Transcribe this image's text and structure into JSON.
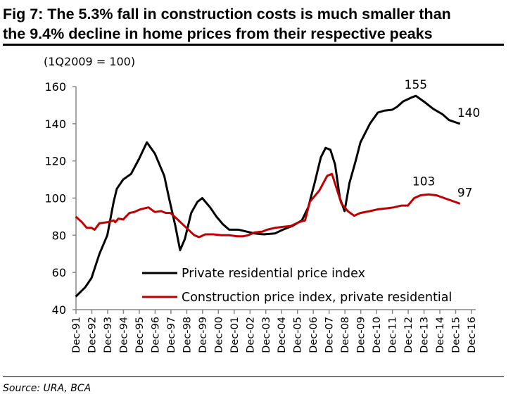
{
  "title_line1": "Fig 7: The 5.3% fall in construction costs is much smaller than",
  "title_line2": "the 9.4% decline in home prices from their respective peaks",
  "source": "Source: URA, BCA",
  "chart_data": {
    "type": "line",
    "title": "Fig 7: The 5.3% fall in construction costs is much smaller than the 9.4% decline in home prices from their respective peaks",
    "ylabel": "(1Q2009 = 100)",
    "xlabel": "",
    "ylim": [
      40,
      160
    ],
    "yticks": [
      40,
      60,
      80,
      100,
      120,
      140,
      160
    ],
    "xlim": [
      1991.92,
      2016.92
    ],
    "xtick_labels": [
      "Dec-91",
      "Dec-92",
      "Dec-93",
      "Dec-94",
      "Dec-95",
      "Dec-96",
      "Dec-97",
      "Dec-98",
      "Dec-99",
      "Dec-00",
      "Dec-01",
      "Dec-02",
      "Dec-03",
      "Dec-04",
      "Dec-05",
      "Dec-06",
      "Dec-07",
      "Dec-08",
      "Dec-09",
      "Dec-10",
      "Dec-11",
      "Dec-12",
      "Dec-13",
      "Dec-14",
      "Dec-15",
      "Dec-16"
    ],
    "grid": false,
    "legend_placement": "bottom-center",
    "series": [
      {
        "name": "Private residential price index",
        "color": "#000000",
        "points": [
          [
            1991.9,
            47
          ],
          [
            1992.5,
            52
          ],
          [
            1992.9,
            57
          ],
          [
            1993.4,
            70
          ],
          [
            1993.9,
            80
          ],
          [
            1994.3,
            98
          ],
          [
            1994.5,
            105
          ],
          [
            1994.9,
            110
          ],
          [
            1995.4,
            113
          ],
          [
            1995.9,
            121
          ],
          [
            1996.4,
            130
          ],
          [
            1996.9,
            124
          ],
          [
            1997.2,
            118
          ],
          [
            1997.5,
            112
          ],
          [
            1997.8,
            100
          ],
          [
            1998.2,
            85
          ],
          [
            1998.5,
            72
          ],
          [
            1998.8,
            78
          ],
          [
            1999.2,
            92
          ],
          [
            1999.6,
            98
          ],
          [
            1999.9,
            100
          ],
          [
            2000.4,
            95
          ],
          [
            2000.8,
            90
          ],
          [
            2001.2,
            86
          ],
          [
            2001.6,
            83
          ],
          [
            2002.2,
            83
          ],
          [
            2002.7,
            82
          ],
          [
            2003.2,
            81
          ],
          [
            2003.8,
            80.5
          ],
          [
            2004.5,
            81
          ],
          [
            2005,
            83
          ],
          [
            2005.6,
            85
          ],
          [
            2006.2,
            88
          ],
          [
            2006.6,
            95
          ],
          [
            2007,
            108
          ],
          [
            2007.4,
            122
          ],
          [
            2007.7,
            127
          ],
          [
            2008,
            126
          ],
          [
            2008.3,
            118
          ],
          [
            2008.6,
            100
          ],
          [
            2008.9,
            93
          ],
          [
            2009.2,
            108
          ],
          [
            2009.6,
            120
          ],
          [
            2009.9,
            130
          ],
          [
            2010.5,
            140
          ],
          [
            2011,
            146
          ],
          [
            2011.4,
            147
          ],
          [
            2011.9,
            147.5
          ],
          [
            2012.2,
            149
          ],
          [
            2012.6,
            152
          ],
          [
            2013.1,
            154
          ],
          [
            2013.4,
            155
          ],
          [
            2013.9,
            152
          ],
          [
            2014.5,
            148
          ],
          [
            2015.1,
            145
          ],
          [
            2015.5,
            142
          ],
          [
            2016,
            140.5
          ],
          [
            2016.2,
            140
          ]
        ],
        "annotations": [
          {
            "label": "155",
            "x": 2013.4,
            "y": 155
          },
          {
            "label": "140",
            "x": 2016.2,
            "y": 140
          }
        ]
      },
      {
        "name": "Construction price index, private residential",
        "color": "#c00000",
        "points": [
          [
            1991.9,
            90
          ],
          [
            1992.3,
            87
          ],
          [
            1992.6,
            84
          ],
          [
            1992.9,
            84
          ],
          [
            1993.1,
            83
          ],
          [
            1993.4,
            86.5
          ],
          [
            1993.9,
            87
          ],
          [
            1994.3,
            88
          ],
          [
            1994.4,
            87
          ],
          [
            1994.6,
            89
          ],
          [
            1994.9,
            88.5
          ],
          [
            1995.3,
            92
          ],
          [
            1995.6,
            92.5
          ],
          [
            1996,
            94
          ],
          [
            1996.5,
            95
          ],
          [
            1996.9,
            92.5
          ],
          [
            1997.3,
            93
          ],
          [
            1997.6,
            92
          ],
          [
            1997.9,
            92
          ],
          [
            1998.4,
            88
          ],
          [
            1998.9,
            84
          ],
          [
            1999.4,
            80
          ],
          [
            1999.7,
            79
          ],
          [
            2000.1,
            80.5
          ],
          [
            2000.6,
            80.5
          ],
          [
            2001.1,
            80
          ],
          [
            2001.6,
            80
          ],
          [
            2002.1,
            79.5
          ],
          [
            2002.5,
            79.5
          ],
          [
            2002.8,
            80
          ],
          [
            2003.2,
            81.5
          ],
          [
            2003.7,
            82
          ],
          [
            2004,
            83
          ],
          [
            2004.5,
            84
          ],
          [
            2005,
            84.5
          ],
          [
            2005.5,
            85
          ],
          [
            2006,
            87
          ],
          [
            2006.4,
            88
          ],
          [
            2006.7,
            98
          ],
          [
            2007.3,
            104
          ],
          [
            2007.8,
            112
          ],
          [
            2008.1,
            113
          ],
          [
            2008.4,
            105
          ],
          [
            2008.7,
            97
          ],
          [
            2009.1,
            93
          ],
          [
            2009.5,
            90.5
          ],
          [
            2009.9,
            92
          ],
          [
            2010.5,
            93
          ],
          [
            2011,
            94
          ],
          [
            2011.6,
            94.5
          ],
          [
            2012,
            95
          ],
          [
            2012.5,
            96
          ],
          [
            2012.9,
            96
          ],
          [
            2013.3,
            100
          ],
          [
            2013.7,
            101.5
          ],
          [
            2014.2,
            102
          ],
          [
            2014.7,
            101.5
          ],
          [
            2015.2,
            100
          ],
          [
            2015.7,
            98.5
          ],
          [
            2016.2,
            97
          ]
        ],
        "annotations": [
          {
            "label": "103",
            "x": 2013.9,
            "y": 103
          },
          {
            "label": "97",
            "x": 2016.2,
            "y": 97
          }
        ]
      }
    ]
  }
}
